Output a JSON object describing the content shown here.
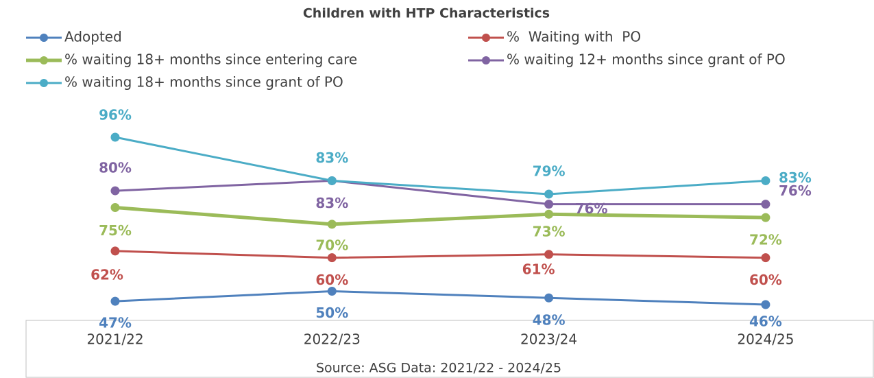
{
  "chart_data": {
    "type": "line",
    "title": "Children with HTP Characteristics",
    "source": "Source: ASG Data: 2021/22 - 2024/25",
    "categories": [
      "2021/22",
      "2022/23",
      "2023/24",
      "2024/25"
    ],
    "series": [
      {
        "name": "Adopted",
        "color": "#4f81bd",
        "values": [
          47,
          50,
          48,
          46
        ],
        "value_labels": [
          "47%",
          "50%",
          "48%",
          "46%"
        ]
      },
      {
        "name": "%  Waiting with  PO",
        "color": "#c0504d",
        "values": [
          62,
          60,
          61,
          60
        ],
        "value_labels": [
          "62%",
          "60%",
          "61%",
          "60%"
        ]
      },
      {
        "name": "% waiting 18+ months since entering care",
        "color": "#9bbb59",
        "values": [
          75,
          70,
          73,
          72
        ],
        "value_labels": [
          "75%",
          "70%",
          "73%",
          "72%"
        ]
      },
      {
        "name": "% waiting 12+ months since grant of PO",
        "color": "#8064a2",
        "values": [
          80,
          83,
          76,
          76
        ],
        "value_labels": [
          "80%",
          "83%",
          "76%",
          "76%"
        ]
      },
      {
        "name": "% waiting 18+ months since grant of PO",
        "color": "#4bacc6",
        "values": [
          96,
          83,
          79,
          83
        ],
        "value_labels": [
          "96%",
          "83%",
          "79%",
          "83%"
        ]
      }
    ],
    "grid": false
  }
}
